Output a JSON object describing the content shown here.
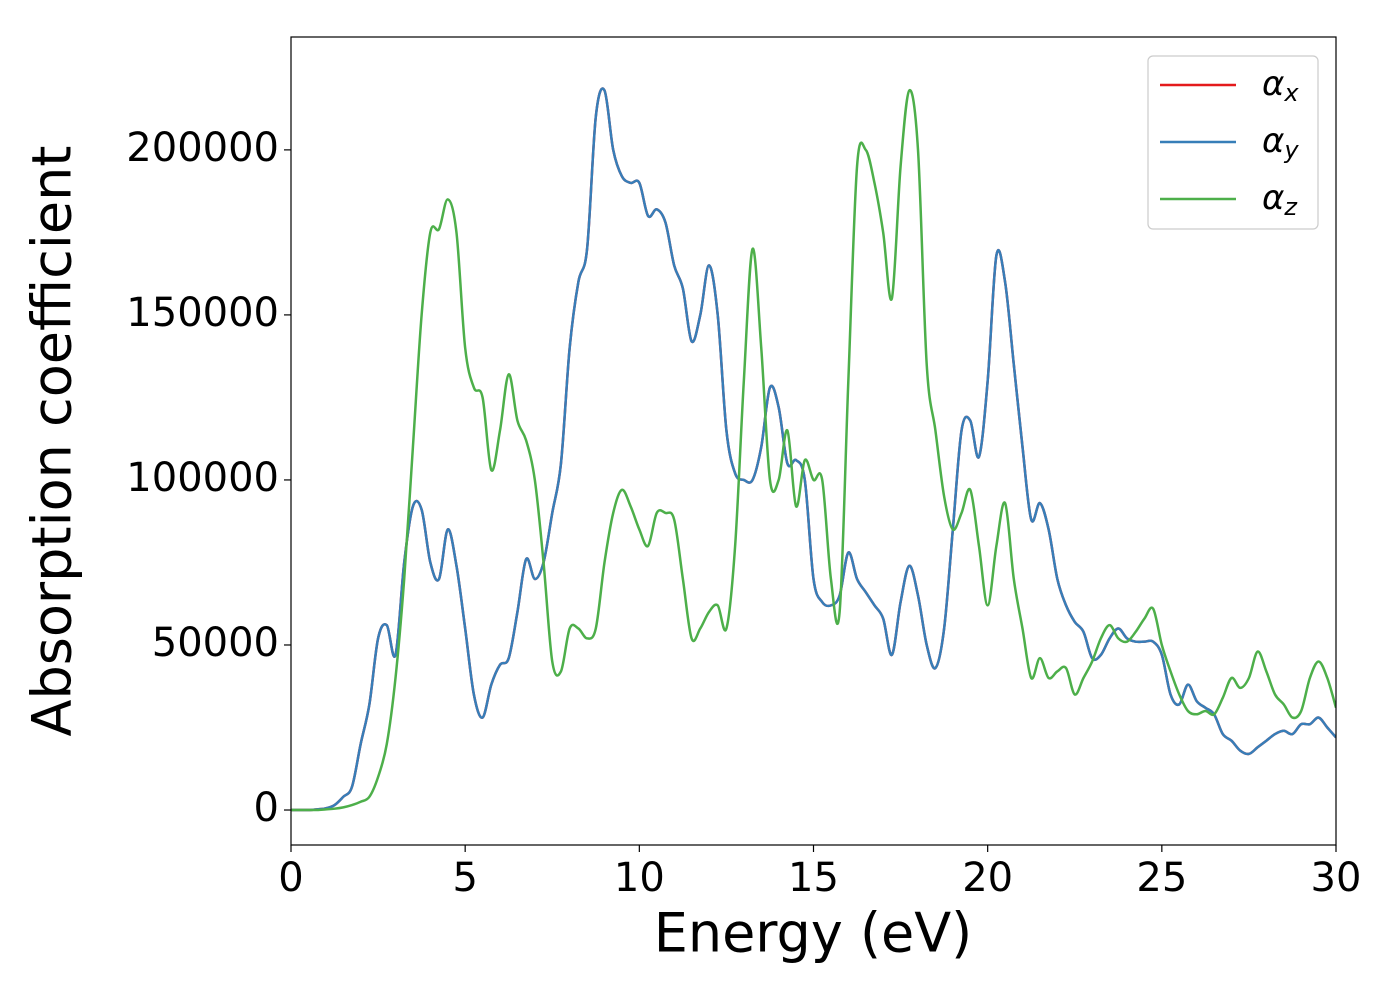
{
  "chart_data": {
    "type": "line",
    "xlabel": "Energy (eV)",
    "ylabel": "Absorption coefficient",
    "x": [
      0,
      0.25,
      0.5,
      0.75,
      1,
      1.25,
      1.5,
      1.75,
      2,
      2.25,
      2.5,
      2.75,
      3,
      3.25,
      3.5,
      3.75,
      4,
      4.25,
      4.5,
      4.75,
      5,
      5.25,
      5.5,
      5.75,
      6,
      6.25,
      6.5,
      6.75,
      7,
      7.25,
      7.5,
      7.75,
      8,
      8.25,
      8.5,
      8.75,
      9,
      9.25,
      9.5,
      9.75,
      10,
      10.25,
      10.5,
      10.75,
      11,
      11.25,
      11.5,
      11.75,
      12,
      12.25,
      12.5,
      12.75,
      13,
      13.25,
      13.5,
      13.75,
      14,
      14.25,
      14.5,
      14.75,
      15,
      15.25,
      15.5,
      15.75,
      16,
      16.25,
      16.5,
      16.75,
      17,
      17.25,
      17.5,
      17.75,
      18,
      18.25,
      18.5,
      18.75,
      19,
      19.25,
      19.5,
      19.75,
      20,
      20.25,
      20.5,
      20.75,
      21,
      21.25,
      21.5,
      21.75,
      22,
      22.25,
      22.5,
      22.75,
      23,
      23.25,
      23.5,
      23.75,
      24,
      24.25,
      24.5,
      24.75,
      25,
      25.25,
      25.5,
      25.75,
      26,
      26.25,
      26.5,
      26.75,
      27,
      27.25,
      27.5,
      27.75,
      28,
      28.25,
      28.5,
      28.75,
      29,
      29.25,
      29.5,
      29.75,
      30
    ],
    "series": [
      {
        "name": "αx",
        "color": "#e41a1c",
        "values": [
          0,
          0,
          0,
          200,
          500,
          1500,
          4000,
          7000,
          20000,
          32000,
          52000,
          56000,
          47000,
          75000,
          92000,
          91000,
          75000,
          70000,
          85000,
          74000,
          55000,
          35000,
          28000,
          38000,
          44000,
          46000,
          60000,
          76000,
          70000,
          75000,
          90000,
          105000,
          140000,
          160000,
          170000,
          210000,
          218000,
          200000,
          192000,
          190000,
          190000,
          180000,
          182000,
          178000,
          165000,
          158000,
          142000,
          150000,
          165000,
          150000,
          115000,
          102000,
          100000,
          100000,
          110000,
          128000,
          122000,
          105000,
          106000,
          100000,
          70000,
          63000,
          62000,
          65000,
          78000,
          70000,
          66000,
          62000,
          58000,
          47000,
          63000,
          74000,
          65000,
          50000,
          43000,
          55000,
          85000,
          115000,
          118000,
          107000,
          130000,
          168000,
          160000,
          135000,
          110000,
          88000,
          93000,
          85000,
          70000,
          62000,
          57000,
          54000,
          46000,
          47000,
          52000,
          55000,
          52000,
          51000,
          51000,
          51000,
          47000,
          35000,
          32000,
          38000,
          33000,
          31000,
          29000,
          23000,
          21000,
          18000,
          17000,
          19000,
          21000,
          23000,
          24000,
          23000,
          26000,
          26000,
          28000,
          25000,
          22000
        ]
      },
      {
        "name": "αy",
        "color": "#377eb8",
        "values": [
          0,
          0,
          0,
          200,
          500,
          1500,
          4000,
          7000,
          20000,
          32000,
          52000,
          56000,
          47000,
          75000,
          92000,
          91000,
          75000,
          70000,
          85000,
          74000,
          55000,
          35000,
          28000,
          38000,
          44000,
          46000,
          60000,
          76000,
          70000,
          75000,
          90000,
          105000,
          140000,
          160000,
          170000,
          210000,
          218000,
          200000,
          192000,
          190000,
          190000,
          180000,
          182000,
          178000,
          165000,
          158000,
          142000,
          150000,
          165000,
          150000,
          115000,
          102000,
          100000,
          100000,
          110000,
          128000,
          122000,
          105000,
          106000,
          100000,
          70000,
          63000,
          62000,
          65000,
          78000,
          70000,
          66000,
          62000,
          58000,
          47000,
          63000,
          74000,
          65000,
          50000,
          43000,
          55000,
          85000,
          115000,
          118000,
          107000,
          130000,
          168000,
          160000,
          135000,
          110000,
          88000,
          93000,
          85000,
          70000,
          62000,
          57000,
          54000,
          46000,
          47000,
          52000,
          55000,
          52000,
          51000,
          51000,
          51000,
          47000,
          35000,
          32000,
          38000,
          33000,
          31000,
          29000,
          23000,
          21000,
          18000,
          17000,
          19000,
          21000,
          23000,
          24000,
          23000,
          26000,
          26000,
          28000,
          25000,
          22000
        ]
      },
      {
        "name": "αz",
        "color": "#4daf4a",
        "values": [
          0,
          0,
          0,
          0,
          200,
          400,
          800,
          1500,
          2500,
          4000,
          10000,
          20000,
          40000,
          70000,
          110000,
          150000,
          175000,
          176000,
          185000,
          175000,
          140000,
          128000,
          125000,
          103000,
          115000,
          132000,
          118000,
          112000,
          100000,
          75000,
          45000,
          42000,
          55000,
          55000,
          52000,
          55000,
          75000,
          90000,
          97000,
          92000,
          85000,
          80000,
          90000,
          90000,
          88000,
          70000,
          52000,
          55000,
          60000,
          62000,
          55000,
          80000,
          130000,
          170000,
          140000,
          100000,
          100000,
          115000,
          92000,
          106000,
          100000,
          100000,
          70000,
          60000,
          130000,
          195000,
          200000,
          190000,
          175000,
          155000,
          195000,
          218000,
          200000,
          135000,
          115000,
          95000,
          85000,
          90000,
          97000,
          80000,
          62000,
          80000,
          93000,
          70000,
          55000,
          40000,
          46000,
          40000,
          42000,
          43000,
          35000,
          40000,
          45000,
          52000,
          56000,
          52000,
          51000,
          54000,
          58000,
          61000,
          50000,
          42000,
          35000,
          30000,
          29000,
          30000,
          29000,
          34000,
          40000,
          37000,
          40000,
          48000,
          42000,
          35000,
          32000,
          28000,
          30000,
          40000,
          45000,
          40000,
          31000
        ]
      }
    ],
    "xlim": [
      0,
      30
    ],
    "xticks": [
      0,
      5,
      10,
      15,
      20,
      25,
      30
    ],
    "ylim": [
      -10600,
      234200
    ],
    "yticks": [
      0,
      50000,
      100000,
      150000,
      200000
    ],
    "legend": "upper right"
  }
}
